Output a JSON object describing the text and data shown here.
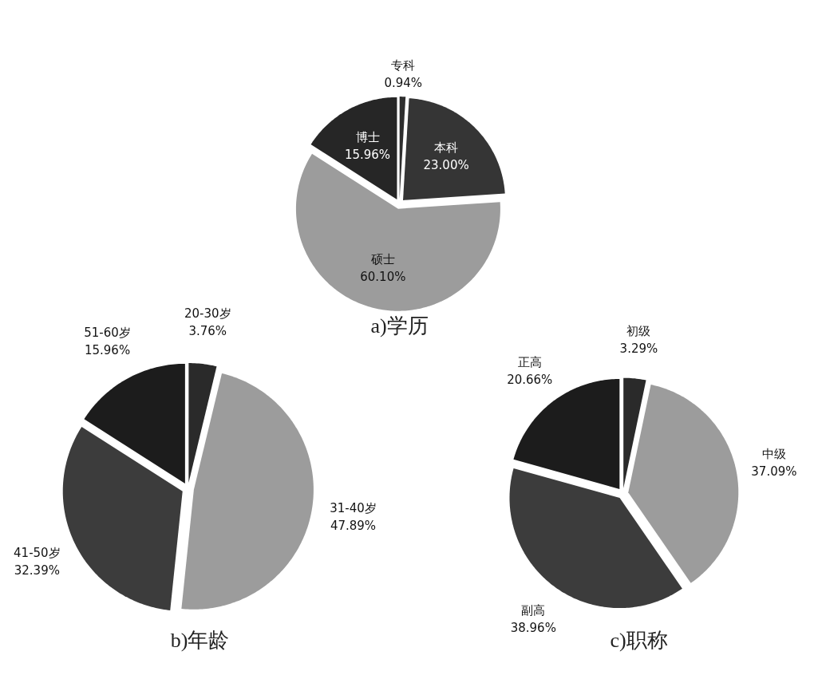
{
  "chart_data": [
    {
      "type": "pie",
      "title": "a)学历",
      "categories": [
        "专科",
        "本科",
        "硕士",
        "博士"
      ],
      "values": [
        0.94,
        23.0,
        60.1,
        15.96
      ],
      "value_labels": [
        "0.94%",
        "23.00%",
        "60.10%",
        "15.96%"
      ],
      "colors": [
        "#2e2e2e",
        "#353535",
        "#9c9c9c",
        "#262626"
      ]
    },
    {
      "type": "pie",
      "title": "b)年龄",
      "categories": [
        "20-30岁",
        "31-40岁",
        "41-50岁",
        "51-60岁"
      ],
      "values": [
        3.76,
        47.89,
        32.39,
        15.96
      ],
      "value_labels": [
        "3.76%",
        "47.89%",
        "32.39%",
        "15.96%"
      ],
      "colors": [
        "#2a2a2a",
        "#9c9c9c",
        "#3c3c3c",
        "#1c1c1c"
      ]
    },
    {
      "type": "pie",
      "title": "c)职称",
      "categories": [
        "初级",
        "中级",
        "副高",
        "正高"
      ],
      "values": [
        3.29,
        37.09,
        38.96,
        20.66
      ],
      "value_labels": [
        "3.29%",
        "37.09%",
        "38.96%",
        "20.66%"
      ],
      "colors": [
        "#2a2a2a",
        "#9c9c9c",
        "#3c3c3c",
        "#1c1c1c"
      ]
    }
  ]
}
